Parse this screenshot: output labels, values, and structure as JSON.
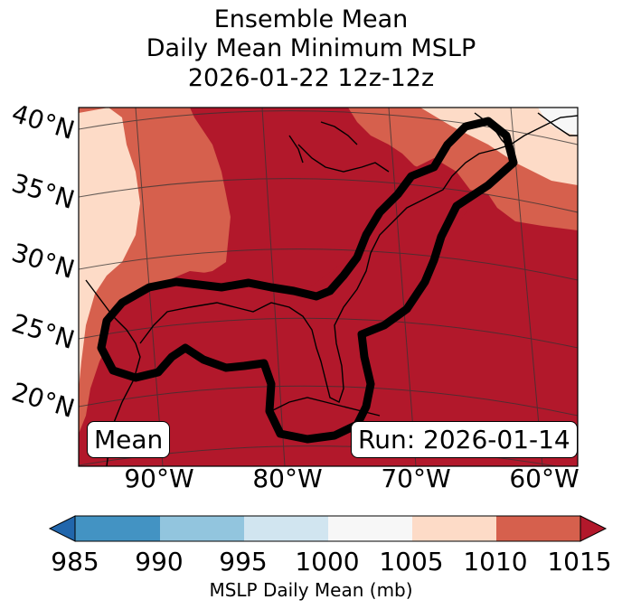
{
  "title": {
    "line1": "Ensemble Mean",
    "line2": "Daily Mean Minimum MSLP",
    "line3": "2026-01-22 12z-12z"
  },
  "lat_labels": [
    "40°N",
    "35°N",
    "30°N",
    "25°N",
    "20°N"
  ],
  "lon_labels": [
    "90°W",
    "80°W",
    "70°W",
    "60°W"
  ],
  "mean_box": "Mean",
  "run_box": "Run: 2026-01-14",
  "colorbar": {
    "ticks": [
      "985",
      "990",
      "995",
      "1000",
      "1005",
      "1010",
      "1015"
    ],
    "label": "MSLP Daily Mean (mb)",
    "colors": [
      "#2166ac",
      "#4393c3",
      "#92c5de",
      "#d1e5f0",
      "#f7f7f7",
      "#fddbc7",
      "#d6604d",
      "#b2182b"
    ]
  },
  "colors": {
    "fill_1015": "#b2182b",
    "fill_1010": "#d6604d",
    "fill_1005": "#fddbc7",
    "contour": "#000000"
  }
}
